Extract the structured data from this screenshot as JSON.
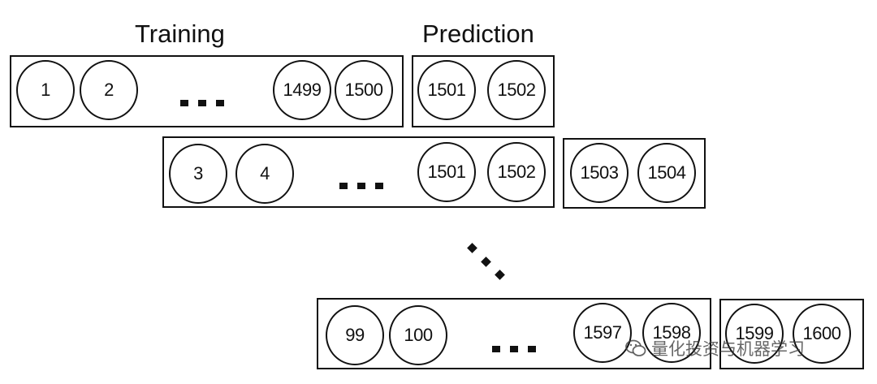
{
  "headers": {
    "training": "Training",
    "prediction": "Prediction"
  },
  "windows": [
    {
      "training": [
        "1",
        "2",
        "1499",
        "1500"
      ],
      "prediction": [
        "1501",
        "1502"
      ]
    },
    {
      "training": [
        "3",
        "4",
        "1501",
        "1502"
      ],
      "prediction": [
        "1503",
        "1504"
      ]
    },
    {
      "training": [
        "99",
        "100",
        "1597",
        "1598"
      ],
      "prediction": [
        "1599",
        "1600"
      ]
    }
  ],
  "watermark": {
    "text": "量化投资与机器学习",
    "icon": "wechat-icon"
  }
}
